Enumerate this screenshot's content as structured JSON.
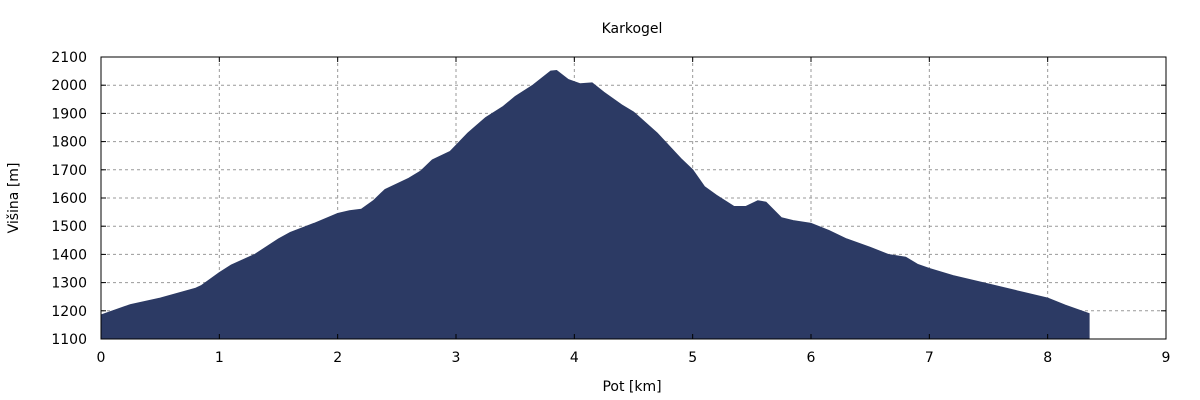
{
  "chart_data": {
    "type": "area",
    "title": "Karkogel",
    "xlabel": "Pot [km]",
    "ylabel": "Višina [m]",
    "xlim": [
      0,
      9
    ],
    "ylim": [
      1100,
      2100
    ],
    "xticks": [
      "0",
      "1",
      "2",
      "3",
      "4",
      "5",
      "6",
      "7",
      "8",
      "9"
    ],
    "yticks": [
      "1100",
      "1200",
      "1300",
      "1400",
      "1500",
      "1600",
      "1700",
      "1800",
      "1900",
      "2000",
      "2100"
    ],
    "grid": true,
    "fill_color": "#2c3a64",
    "series": [
      {
        "name": "Višina",
        "x": [
          0,
          0.2,
          0.25,
          0.5,
          0.8,
          0.85,
          1.0,
          1.1,
          1.3,
          1.5,
          1.6,
          1.8,
          2.0,
          2.1,
          2.2,
          2.3,
          2.4,
          2.6,
          2.7,
          2.8,
          2.95,
          3.1,
          3.25,
          3.4,
          3.5,
          3.65,
          3.8,
          3.85,
          3.95,
          4.05,
          4.15,
          4.25,
          4.4,
          4.5,
          4.7,
          4.9,
          5.0,
          5.1,
          5.2,
          5.35,
          5.45,
          5.55,
          5.62,
          5.75,
          5.85,
          6.0,
          6.15,
          6.3,
          6.5,
          6.65,
          6.8,
          6.9,
          7.0,
          7.2,
          7.5,
          7.8,
          8.0,
          8.15,
          8.35
        ],
        "y": [
          1185,
          1215,
          1222,
          1245,
          1280,
          1290,
          1335,
          1362,
          1400,
          1455,
          1478,
          1510,
          1545,
          1555,
          1560,
          1590,
          1630,
          1670,
          1695,
          1735,
          1765,
          1830,
          1885,
          1925,
          1960,
          2000,
          2050,
          2052,
          2020,
          2005,
          2008,
          1975,
          1930,
          1905,
          1830,
          1740,
          1700,
          1640,
          1610,
          1570,
          1570,
          1590,
          1585,
          1530,
          1520,
          1510,
          1485,
          1455,
          1425,
          1400,
          1390,
          1365,
          1350,
          1325,
          1295,
          1265,
          1245,
          1220,
          1190
        ]
      }
    ]
  }
}
